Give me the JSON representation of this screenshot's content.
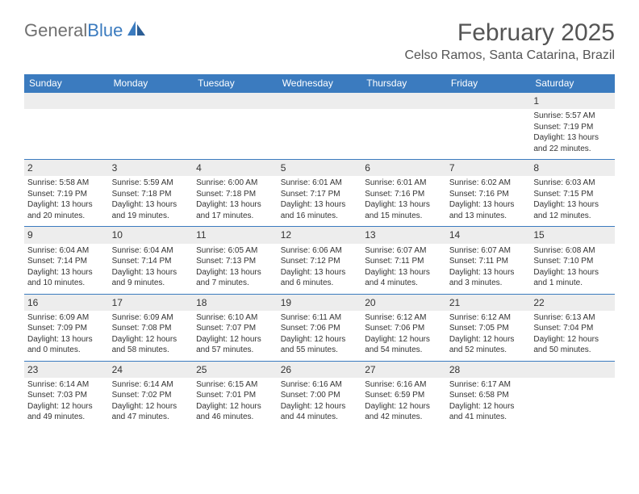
{
  "logo": {
    "general": "General",
    "blue": "Blue"
  },
  "title": "February 2025",
  "location": "Celso Ramos, Santa Catarina, Brazil",
  "day_headers": [
    "Sunday",
    "Monday",
    "Tuesday",
    "Wednesday",
    "Thursday",
    "Friday",
    "Saturday"
  ],
  "colors": {
    "header_bg": "#3b7bbf",
    "header_text": "#ffffff",
    "daynum_bg": "#ededed",
    "text": "#333333",
    "title_text": "#555555",
    "logo_gray": "#707070",
    "logo_blue": "#3b7bbf",
    "row_border": "#3b7bbf",
    "page_bg": "#ffffff"
  },
  "typography": {
    "title_fontsize": 30,
    "location_fontsize": 16,
    "header_fontsize": 12,
    "daynum_fontsize": 12,
    "body_fontsize": 10
  },
  "weeks": [
    [
      null,
      null,
      null,
      null,
      null,
      null,
      {
        "n": "1",
        "sunrise": "Sunrise: 5:57 AM",
        "sunset": "Sunset: 7:19 PM",
        "daylight": "Daylight: 13 hours and 22 minutes."
      }
    ],
    [
      {
        "n": "2",
        "sunrise": "Sunrise: 5:58 AM",
        "sunset": "Sunset: 7:19 PM",
        "daylight": "Daylight: 13 hours and 20 minutes."
      },
      {
        "n": "3",
        "sunrise": "Sunrise: 5:59 AM",
        "sunset": "Sunset: 7:18 PM",
        "daylight": "Daylight: 13 hours and 19 minutes."
      },
      {
        "n": "4",
        "sunrise": "Sunrise: 6:00 AM",
        "sunset": "Sunset: 7:18 PM",
        "daylight": "Daylight: 13 hours and 17 minutes."
      },
      {
        "n": "5",
        "sunrise": "Sunrise: 6:01 AM",
        "sunset": "Sunset: 7:17 PM",
        "daylight": "Daylight: 13 hours and 16 minutes."
      },
      {
        "n": "6",
        "sunrise": "Sunrise: 6:01 AM",
        "sunset": "Sunset: 7:16 PM",
        "daylight": "Daylight: 13 hours and 15 minutes."
      },
      {
        "n": "7",
        "sunrise": "Sunrise: 6:02 AM",
        "sunset": "Sunset: 7:16 PM",
        "daylight": "Daylight: 13 hours and 13 minutes."
      },
      {
        "n": "8",
        "sunrise": "Sunrise: 6:03 AM",
        "sunset": "Sunset: 7:15 PM",
        "daylight": "Daylight: 13 hours and 12 minutes."
      }
    ],
    [
      {
        "n": "9",
        "sunrise": "Sunrise: 6:04 AM",
        "sunset": "Sunset: 7:14 PM",
        "daylight": "Daylight: 13 hours and 10 minutes."
      },
      {
        "n": "10",
        "sunrise": "Sunrise: 6:04 AM",
        "sunset": "Sunset: 7:14 PM",
        "daylight": "Daylight: 13 hours and 9 minutes."
      },
      {
        "n": "11",
        "sunrise": "Sunrise: 6:05 AM",
        "sunset": "Sunset: 7:13 PM",
        "daylight": "Daylight: 13 hours and 7 minutes."
      },
      {
        "n": "12",
        "sunrise": "Sunrise: 6:06 AM",
        "sunset": "Sunset: 7:12 PM",
        "daylight": "Daylight: 13 hours and 6 minutes."
      },
      {
        "n": "13",
        "sunrise": "Sunrise: 6:07 AM",
        "sunset": "Sunset: 7:11 PM",
        "daylight": "Daylight: 13 hours and 4 minutes."
      },
      {
        "n": "14",
        "sunrise": "Sunrise: 6:07 AM",
        "sunset": "Sunset: 7:11 PM",
        "daylight": "Daylight: 13 hours and 3 minutes."
      },
      {
        "n": "15",
        "sunrise": "Sunrise: 6:08 AM",
        "sunset": "Sunset: 7:10 PM",
        "daylight": "Daylight: 13 hours and 1 minute."
      }
    ],
    [
      {
        "n": "16",
        "sunrise": "Sunrise: 6:09 AM",
        "sunset": "Sunset: 7:09 PM",
        "daylight": "Daylight: 13 hours and 0 minutes."
      },
      {
        "n": "17",
        "sunrise": "Sunrise: 6:09 AM",
        "sunset": "Sunset: 7:08 PM",
        "daylight": "Daylight: 12 hours and 58 minutes."
      },
      {
        "n": "18",
        "sunrise": "Sunrise: 6:10 AM",
        "sunset": "Sunset: 7:07 PM",
        "daylight": "Daylight: 12 hours and 57 minutes."
      },
      {
        "n": "19",
        "sunrise": "Sunrise: 6:11 AM",
        "sunset": "Sunset: 7:06 PM",
        "daylight": "Daylight: 12 hours and 55 minutes."
      },
      {
        "n": "20",
        "sunrise": "Sunrise: 6:12 AM",
        "sunset": "Sunset: 7:06 PM",
        "daylight": "Daylight: 12 hours and 54 minutes."
      },
      {
        "n": "21",
        "sunrise": "Sunrise: 6:12 AM",
        "sunset": "Sunset: 7:05 PM",
        "daylight": "Daylight: 12 hours and 52 minutes."
      },
      {
        "n": "22",
        "sunrise": "Sunrise: 6:13 AM",
        "sunset": "Sunset: 7:04 PM",
        "daylight": "Daylight: 12 hours and 50 minutes."
      }
    ],
    [
      {
        "n": "23",
        "sunrise": "Sunrise: 6:14 AM",
        "sunset": "Sunset: 7:03 PM",
        "daylight": "Daylight: 12 hours and 49 minutes."
      },
      {
        "n": "24",
        "sunrise": "Sunrise: 6:14 AM",
        "sunset": "Sunset: 7:02 PM",
        "daylight": "Daylight: 12 hours and 47 minutes."
      },
      {
        "n": "25",
        "sunrise": "Sunrise: 6:15 AM",
        "sunset": "Sunset: 7:01 PM",
        "daylight": "Daylight: 12 hours and 46 minutes."
      },
      {
        "n": "26",
        "sunrise": "Sunrise: 6:16 AM",
        "sunset": "Sunset: 7:00 PM",
        "daylight": "Daylight: 12 hours and 44 minutes."
      },
      {
        "n": "27",
        "sunrise": "Sunrise: 6:16 AM",
        "sunset": "Sunset: 6:59 PM",
        "daylight": "Daylight: 12 hours and 42 minutes."
      },
      {
        "n": "28",
        "sunrise": "Sunrise: 6:17 AM",
        "sunset": "Sunset: 6:58 PM",
        "daylight": "Daylight: 12 hours and 41 minutes."
      },
      null
    ]
  ]
}
